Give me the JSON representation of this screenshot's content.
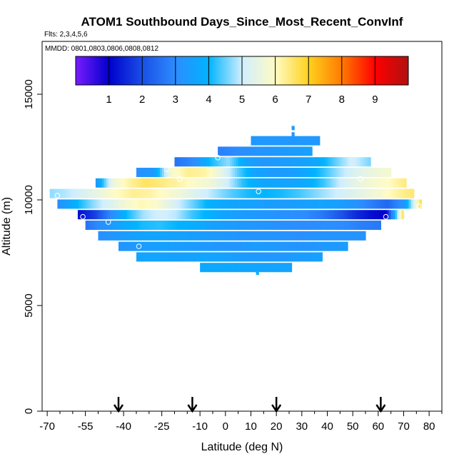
{
  "chart_data": {
    "type": "heatmap",
    "title": "ATOM1 Southbound Days_Since_Most_Recent_ConvInf",
    "flights_note": "Flts: 2,3,4,5,6",
    "dates_note": "MMDD: 0801,0803,0806,0808,0812",
    "xlabel": "Latitude (deg N)",
    "ylabel": "Altitude (m)",
    "xlim": [
      -72,
      85
    ],
    "ylim": [
      0,
      17500
    ],
    "x_ticks": [
      "-70",
      "-55",
      "-40",
      "-25",
      "-10",
      "0",
      "10",
      "20",
      "30",
      "40",
      "50",
      "60",
      "70",
      "80"
    ],
    "x_tick_values": [
      -70,
      -55,
      -40,
      -25,
      -10,
      0,
      10,
      20,
      30,
      40,
      50,
      60,
      70,
      80
    ],
    "x_minor_ticks": [
      -65,
      -60,
      -50,
      -45,
      -35,
      -30,
      -20,
      -15,
      -5,
      5,
      15,
      25,
      35,
      45,
      55,
      65,
      75,
      85
    ],
    "y_ticks": [
      "0",
      "5000",
      "10000",
      "15000"
    ],
    "y_tick_values": [
      0,
      5000,
      10000,
      15000
    ],
    "colorbar": {
      "range": [
        0,
        10
      ],
      "ticks": [
        "1",
        "2",
        "3",
        "4",
        "5",
        "6",
        "7",
        "8",
        "9"
      ],
      "tick_values": [
        1,
        2,
        3,
        4,
        5,
        6,
        7,
        8,
        9
      ],
      "colors": [
        "#7a1bff",
        "#0000cc",
        "#1a4fe6",
        "#2d8cff",
        "#00b4ff",
        "#cfeeff",
        "#fffbc4",
        "#ffd21e",
        "#ff7a00",
        "#ff0000",
        "#b01010"
      ]
    },
    "arrow_latitudes": [
      -42,
      -13,
      20,
      61
    ],
    "layers": [
      {
        "alt": 13400,
        "lat": [
          26,
          27
        ],
        "values": [
          3.4
        ]
      },
      {
        "alt": 13100,
        "lat": [
          26,
          27
        ],
        "values": [
          3.2
        ]
      },
      {
        "alt": 12800,
        "lat": [
          10,
          37
        ],
        "values": [
          3.3,
          3.3,
          3.3,
          3.3
        ]
      },
      {
        "alt": 12300,
        "lat": [
          -3,
          34
        ],
        "values": [
          2.8,
          3.0,
          3.2,
          3.3,
          3.4,
          3.5
        ]
      },
      {
        "alt": 11800,
        "lat": [
          -20,
          57
        ],
        "values": [
          2.6,
          3.0,
          4.1,
          4.7,
          3.6,
          3.3,
          3.4,
          3.5,
          3.7,
          4.4,
          5.1,
          4.6
        ]
      },
      {
        "alt": 11300,
        "lat": [
          -35,
          65
        ],
        "values": [
          3.1,
          3.4,
          5.8,
          6.3,
          6.2,
          5.5,
          4.4,
          3.6,
          3.4,
          3.4,
          3.7,
          4.2,
          4.8,
          5.3,
          5.6,
          5.8
        ]
      },
      {
        "alt": 10800,
        "lat": [
          -51,
          71
        ],
        "values": [
          3.3,
          5.6,
          6.2,
          6.6,
          6.4,
          6.2,
          5.9,
          5.7,
          5.1,
          4.2,
          3.7,
          3.6,
          3.6,
          3.8,
          4.3,
          5.0,
          5.5,
          5.8,
          6.0,
          6.4
        ]
      },
      {
        "alt": 10300,
        "lat": [
          -69,
          74
        ],
        "values": [
          4.7,
          4.9,
          5.2,
          5.6,
          6.0,
          6.3,
          6.2,
          5.9,
          5.6,
          5.2,
          4.8,
          4.4,
          4.1,
          4.0,
          4.1,
          4.3,
          4.6,
          4.9,
          5.2,
          5.5,
          5.8,
          6.2,
          6.5
        ]
      },
      {
        "alt": 9800,
        "lat": [
          -66,
          77
        ],
        "values": [
          3.1,
          3.9,
          4.6,
          5.2,
          5.7,
          6.1,
          5.9,
          5.2,
          4.6,
          4.0,
          3.7,
          3.6,
          3.5,
          3.4,
          3.4,
          3.5,
          3.6,
          3.5,
          3.2,
          2.8,
          2.4,
          3.2,
          6.6
        ]
      },
      {
        "alt": 9300,
        "lat": [
          -58,
          70
        ],
        "values": [
          1.2,
          1.8,
          3.0,
          4.1,
          4.8,
          5.1,
          4.9,
          4.3,
          3.9,
          3.6,
          3.4,
          3.3,
          3.2,
          3.1,
          3.0,
          2.7,
          2.2,
          1.6,
          1.2,
          1.0,
          6.5
        ]
      },
      {
        "alt": 8800,
        "lat": [
          -55,
          61
        ],
        "values": [
          2.6,
          3.2,
          3.7,
          4.1,
          4.2,
          4.0,
          3.8,
          3.5,
          3.4,
          3.3,
          3.2,
          3.1,
          3.0,
          3.1,
          3.0,
          2.8,
          2.7
        ]
      },
      {
        "alt": 8300,
        "lat": [
          -50,
          55
        ],
        "values": [
          3.1,
          3.4,
          3.6,
          3.6,
          3.5,
          3.4,
          3.3,
          3.2,
          3.2,
          3.1,
          3.2,
          3.2,
          3.2
        ]
      },
      {
        "alt": 7800,
        "lat": [
          -42,
          48
        ],
        "values": [
          3.2,
          3.4,
          3.5,
          3.4,
          3.3,
          3.2,
          3.4,
          3.3,
          3.2,
          3.3,
          3.4
        ]
      },
      {
        "alt": 7300,
        "lat": [
          -35,
          38
        ],
        "values": [
          3.6,
          3.6,
          3.5,
          3.6,
          3.6,
          3.4,
          3.3,
          3.3,
          3.4,
          3.5
        ]
      },
      {
        "alt": 6800,
        "lat": [
          -10,
          26
        ],
        "values": [
          3.7,
          3.7,
          3.6,
          3.6
        ]
      },
      {
        "alt": 6550,
        "lat": [
          12,
          13
        ],
        "values": [
          3.9
        ]
      }
    ],
    "open_circles": [
      {
        "lat": -66,
        "alt": 10200
      },
      {
        "lat": -56,
        "alt": 9200
      },
      {
        "lat": -46,
        "alt": 8950
      },
      {
        "lat": -34,
        "alt": 7800
      },
      {
        "lat": -23,
        "alt": 11450
      },
      {
        "lat": -18,
        "alt": 11000
      },
      {
        "lat": -3,
        "alt": 12000
      },
      {
        "lat": 13,
        "alt": 10400
      },
      {
        "lat": 53,
        "alt": 11000
      },
      {
        "lat": 63,
        "alt": 9200
      },
      {
        "lat": 76,
        "alt": 9700
      }
    ]
  }
}
